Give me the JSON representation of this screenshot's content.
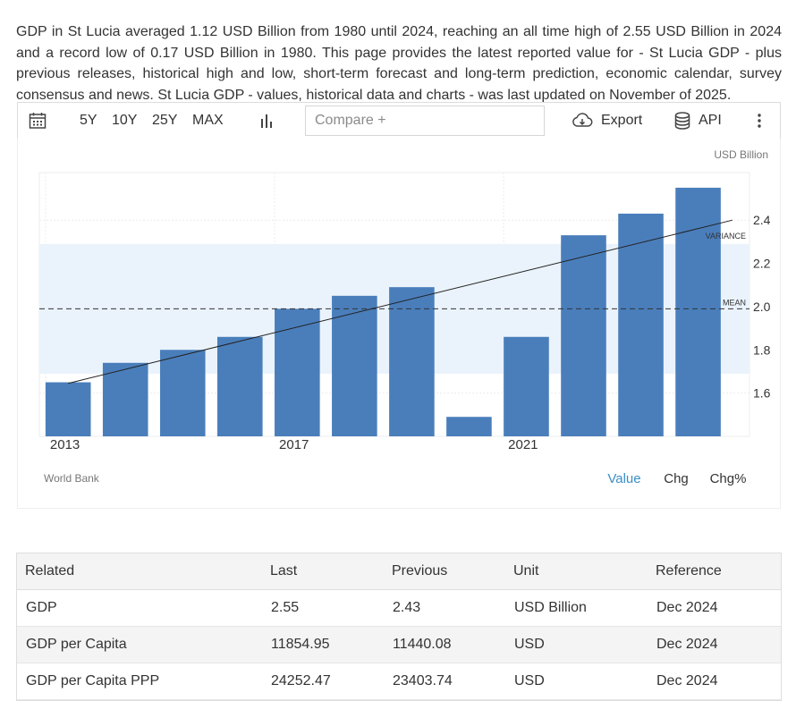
{
  "description": "GDP in St Lucia averaged 1.12 USD Billion from 1980 until 2024, reaching an all time high of 2.55 USD Billion in 2024 and a record low of 0.17 USD Billion in 1980. This page provides the latest reported value for - St Lucia GDP - plus previous releases, historical high and low, short-term forecast and long-term prediction, economic calendar, survey consensus and news. St Lucia GDP - values, historical data and charts - was last updated on November of 2025.",
  "toolbar": {
    "ranges": [
      "5Y",
      "10Y",
      "25Y",
      "MAX"
    ],
    "compare_placeholder": "Compare +",
    "export_label": "Export",
    "api_label": "API",
    "icons": [
      "calendar-icon",
      "bar-chart-icon",
      "cloud-download-icon",
      "database-icon",
      "more-vertical-icon"
    ]
  },
  "chart_data": {
    "type": "bar",
    "unit_label": "USD Billion",
    "categories": [
      "2013",
      "2014",
      "2015",
      "2016",
      "2017",
      "2018",
      "2019",
      "2020",
      "2021",
      "2022",
      "2023",
      "2024"
    ],
    "values": [
      1.65,
      1.74,
      1.8,
      1.86,
      1.99,
      2.05,
      2.09,
      1.49,
      1.86,
      2.33,
      2.43,
      2.55
    ],
    "x_tick_labels": [
      "2013",
      "2017",
      "2021"
    ],
    "y_ticks": [
      1.6,
      1.8,
      2.0,
      2.2,
      2.4
    ],
    "ylim": [
      1.4,
      2.62
    ],
    "mean": 1.99,
    "variance_band": [
      1.69,
      2.29
    ],
    "mean_label": "MEAN",
    "variance_label": "VARIANCE",
    "trendline": [
      1.645,
      2.4
    ],
    "bar_color": "#4a7ebb",
    "band_color": "#eaf3fb",
    "source": "World Bank",
    "grid": true
  },
  "view_tabs": [
    {
      "label": "Value",
      "active": true
    },
    {
      "label": "Chg",
      "active": false
    },
    {
      "label": "Chg%",
      "active": false
    }
  ],
  "accent_color": "#3a8fc7",
  "table": {
    "headers": [
      "Related",
      "Last",
      "Previous",
      "Unit",
      "Reference"
    ],
    "rows": [
      [
        "GDP",
        "2.55",
        "2.43",
        "USD Billion",
        "Dec 2024"
      ],
      [
        "GDP per Capita",
        "11854.95",
        "11440.08",
        "USD",
        "Dec 2024"
      ],
      [
        "GDP per Capita PPP",
        "24252.47",
        "23403.74",
        "USD",
        "Dec 2024"
      ]
    ]
  }
}
